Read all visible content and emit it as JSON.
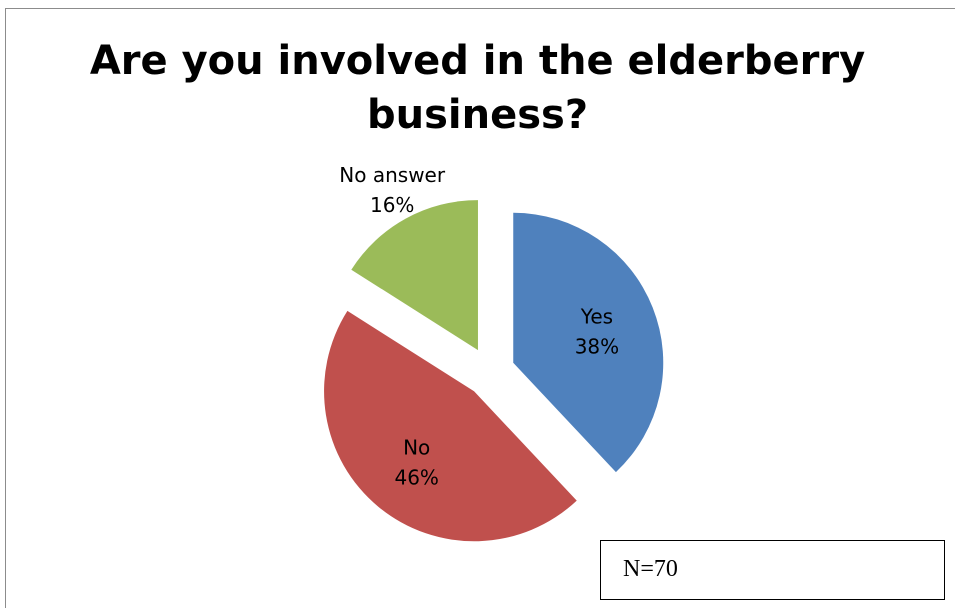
{
  "chart_data": {
    "type": "pie",
    "title_lines": [
      "Are you involved in the elderberry",
      "business?"
    ],
    "slices": [
      {
        "label": "Yes",
        "value": 38,
        "display": "38%",
        "color": "#4f81bd"
      },
      {
        "label": "No",
        "value": 46,
        "display": "46%",
        "color": "#c0504d"
      },
      {
        "label": "No answer",
        "value": 16,
        "display": "16%",
        "color": "#9bbb59"
      }
    ]
  },
  "annotation": {
    "text": "N=70"
  }
}
